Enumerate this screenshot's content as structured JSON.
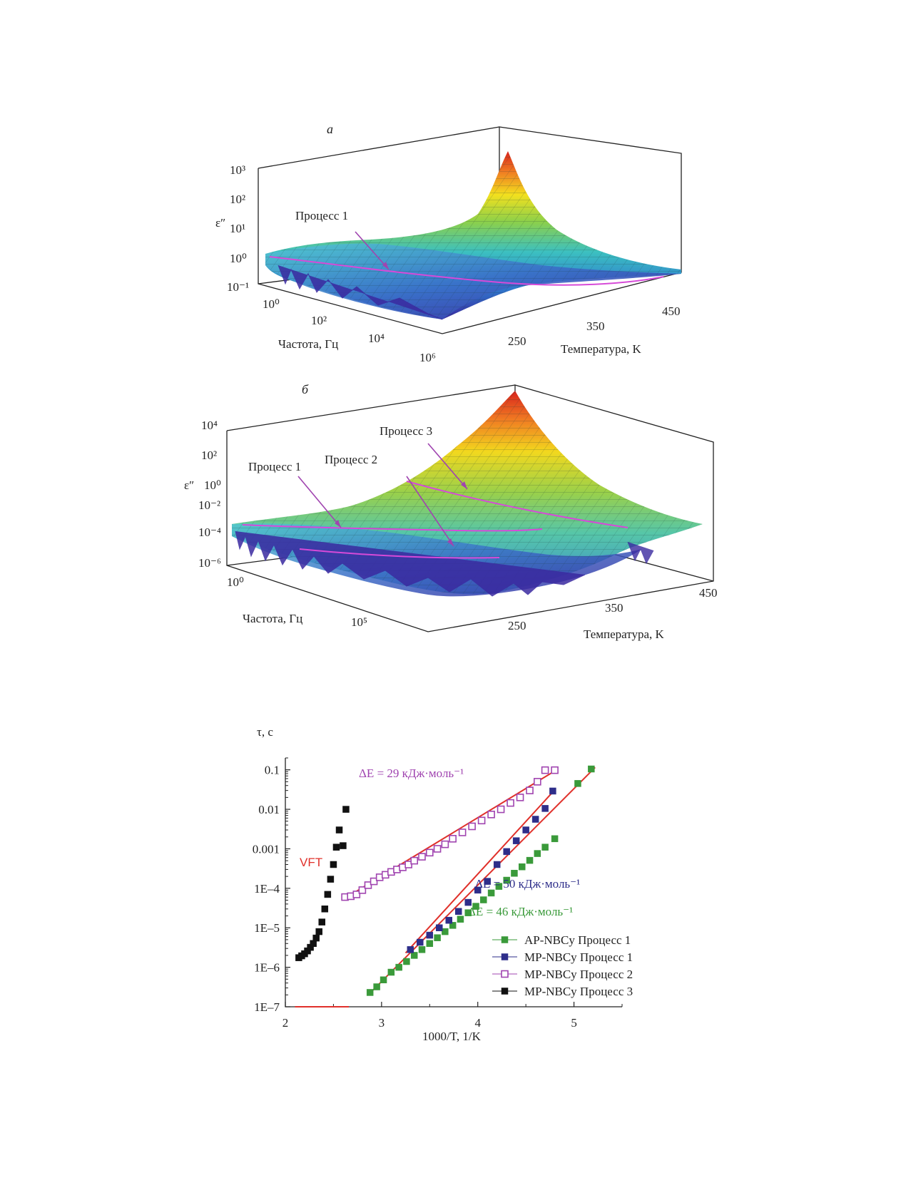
{
  "panels": [
    {
      "letter": "а",
      "zlabel": "ε″",
      "zticks": [
        "10³",
        "10²",
        "10¹",
        "10⁰",
        "10⁻¹"
      ],
      "freq_ticks": [
        "10⁰",
        "10²",
        "10⁴",
        "10⁶"
      ],
      "temp_ticks": [
        "250",
        "350",
        "450"
      ],
      "xlabel": "Частота, Гц",
      "ylabel": "Температура, K",
      "process_labels": [
        "Процесс 1"
      ]
    },
    {
      "letter": "б",
      "zlabel": "ε″",
      "zticks": [
        "10⁴",
        "10²",
        "10⁰",
        "10⁻²",
        "10⁻⁴",
        "10⁻⁶"
      ],
      "freq_ticks": [
        "10⁰",
        "10⁵"
      ],
      "temp_ticks": [
        "250",
        "350",
        "450"
      ],
      "xlabel": "Частота, Гц",
      "ylabel": "Температура, K",
      "process_labels": [
        "Процесс 1",
        "Процесс 2",
        "Процесс 3"
      ]
    }
  ],
  "colors": {
    "green": "#3a9a3a",
    "navy": "#2e2e8a",
    "purple": "#a044b0",
    "black": "#111111",
    "fit": "#e0302a",
    "surface_high": "#d83a1a",
    "surface_low": "#3a2aa0"
  },
  "chart_data": {
    "type": "scatter",
    "x_scale": "linear",
    "y_scale": "log",
    "xlabel": "1000/T, 1/K",
    "ylabel": "τ, с",
    "xlim": [
      2,
      5.5
    ],
    "ylim": [
      1e-07,
      0.2
    ],
    "x_ticks": [
      "2",
      "3",
      "4",
      "5"
    ],
    "y_ticks": [
      "0.1",
      "0.01",
      "0.001",
      "1E–4",
      "1E–5",
      "1E–6",
      "1E–7"
    ],
    "annotations": {
      "vft": "VFT",
      "de29": "ΔE = 29 кДж·моль⁻¹",
      "de50": "ΔE = 50 кДж·моль⁻¹",
      "de46": "ΔE = 46 кДж·моль⁻¹"
    },
    "series": [
      {
        "name": "AP-NBCy Процесс 1",
        "marker": "filled-square",
        "color": "#3a9a3a",
        "x": [
          2.88,
          2.95,
          3.02,
          3.1,
          3.18,
          3.26,
          3.34,
          3.42,
          3.5,
          3.58,
          3.66,
          3.74,
          3.82,
          3.9,
          3.98,
          4.06,
          4.14,
          4.22,
          4.3,
          4.38,
          4.46,
          4.54,
          4.62,
          4.7,
          4.8,
          5.04,
          5.18
        ],
        "y": [
          2.3e-07,
          3.2e-07,
          4.8e-07,
          7.5e-07,
          1e-06,
          1.4e-06,
          2e-06,
          2.8e-06,
          4e-06,
          5.6e-06,
          8e-06,
          1.15e-05,
          1.65e-05,
          2.4e-05,
          3.5e-05,
          5.1e-05,
          7.6e-05,
          0.000112,
          0.00016,
          0.00024,
          0.00035,
          0.00051,
          0.00076,
          0.0011,
          0.0018,
          0.045,
          0.105
        ]
      },
      {
        "name": "MP-NBCy Процесс 1",
        "marker": "filled-square",
        "color": "#2e2e8a",
        "x": [
          3.3,
          3.4,
          3.5,
          3.6,
          3.7,
          3.8,
          3.9,
          4.0,
          4.1,
          4.2,
          4.3,
          4.4,
          4.5,
          4.6,
          4.7,
          4.78
        ],
        "y": [
          2.8e-06,
          4.3e-06,
          6.5e-06,
          1e-05,
          1.55e-05,
          2.6e-05,
          4.4e-05,
          9e-05,
          0.00015,
          0.0004,
          0.00085,
          0.0016,
          0.003,
          0.0056,
          0.0105,
          0.029
        ]
      },
      {
        "name": "MP-NBCy Процесс 2",
        "marker": "open-square",
        "color": "#a044b0",
        "x": [
          2.62,
          2.68,
          2.74,
          2.8,
          2.86,
          2.92,
          2.98,
          3.04,
          3.1,
          3.16,
          3.22,
          3.28,
          3.34,
          3.42,
          3.5,
          3.58,
          3.66,
          3.74,
          3.84,
          3.94,
          4.04,
          4.14,
          4.24,
          4.34,
          4.44,
          4.54,
          4.62,
          4.7,
          4.8
        ],
        "y": [
          6e-05,
          6.3e-05,
          7e-05,
          9e-05,
          0.00012,
          0.00015,
          0.00019,
          0.00022,
          0.00026,
          0.0003,
          0.00034,
          0.0004,
          0.0005,
          0.00063,
          0.0008,
          0.001,
          0.0013,
          0.0018,
          0.0026,
          0.0037,
          0.0052,
          0.0074,
          0.01,
          0.0145,
          0.02,
          0.03,
          0.05,
          0.098,
          0.098
        ]
      },
      {
        "name": "MP-NBCy Процесс 3",
        "marker": "filled-square",
        "color": "#111111",
        "x": [
          2.14,
          2.17,
          2.2,
          2.23,
          2.26,
          2.29,
          2.32,
          2.35,
          2.38,
          2.41,
          2.44,
          2.47,
          2.5,
          2.53,
          2.56,
          2.6,
          2.63
        ],
        "y": [
          1.75e-06,
          1.95e-06,
          2.2e-06,
          2.6e-06,
          3.2e-06,
          4e-06,
          5.5e-06,
          8e-06,
          1.4e-05,
          3e-05,
          7e-05,
          0.00017,
          0.0004,
          0.0011,
          0.003,
          0.0012,
          0.01
        ]
      }
    ],
    "fits": [
      {
        "x": [
          2.87,
          5.22
        ],
        "y": [
          2.1e-07,
          0.115
        ]
      },
      {
        "x": [
          3.25,
          4.8
        ],
        "y": [
          2.3e-06,
          0.031
        ]
      },
      {
        "x": [
          2.62,
          4.82
        ],
        "y": [
          5.6e-05,
          0.1
        ]
      }
    ],
    "vft_fit": {
      "T0": 260,
      "tau0": 1.3e-08,
      "B": 2.0
    },
    "grid": false,
    "legend_position": "bottom-right"
  }
}
